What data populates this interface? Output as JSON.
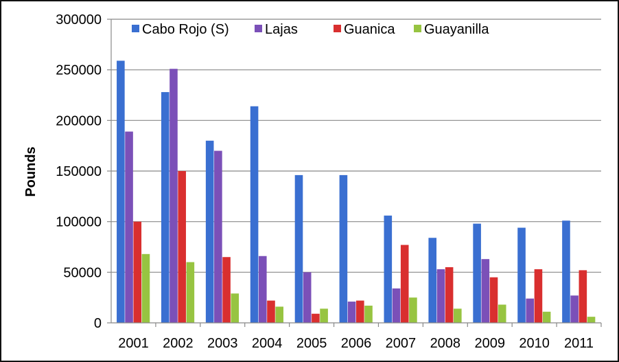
{
  "chart_data": {
    "type": "bar",
    "title": "",
    "xlabel": "",
    "ylabel": "Pounds",
    "ylim": [
      0,
      300000
    ],
    "yticks": [
      "0",
      "50000",
      "100000",
      "150000",
      "200000",
      "250000",
      "300000"
    ],
    "grid": true,
    "legend_position": "top",
    "categories": [
      "2001",
      "2002",
      "2003",
      "2004",
      "2005",
      "2006",
      "2007",
      "2008",
      "2009",
      "2010",
      "2011"
    ],
    "series": [
      {
        "name": "Cabo Rojo (S)",
        "color": "#3a6fd1",
        "values": [
          259000,
          228000,
          180000,
          214000,
          146000,
          146000,
          106000,
          84000,
          98000,
          94000,
          101000
        ]
      },
      {
        "name": "Lajas",
        "color": "#7b50b8",
        "values": [
          189000,
          251000,
          170000,
          66000,
          50000,
          21000,
          34000,
          53000,
          63000,
          24000,
          27000
        ]
      },
      {
        "name": "Guanica",
        "color": "#d92f2f",
        "values": [
          100000,
          150000,
          65000,
          22000,
          9000,
          22000,
          77000,
          55000,
          45000,
          53000,
          52000
        ]
      },
      {
        "name": "Guayanilla",
        "color": "#97c441",
        "values": [
          68000,
          60000,
          29000,
          16000,
          14000,
          17000,
          25000,
          14000,
          18000,
          11000,
          6000
        ]
      }
    ]
  }
}
